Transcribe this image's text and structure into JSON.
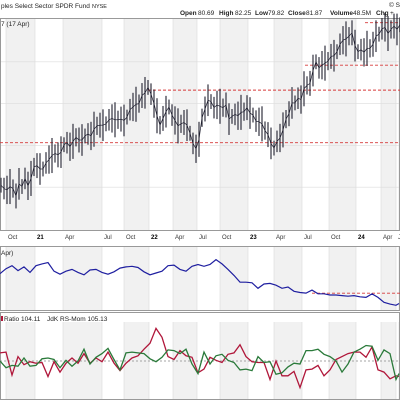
{
  "header": {
    "title": "ples Select Sector SPDR Fund",
    "exchange": "NYSE",
    "open_label": "Open",
    "open_value": "80.69",
    "high_label": "High",
    "high_value": "82.25",
    "low_label": "Low",
    "low_value": "79.82",
    "close_label": "Close",
    "close_value": "81.87",
    "volume_label": "Volume",
    "volume_value": "48.5M",
    "chg_label": "Chg",
    "chg_value": "+",
    "date_label": "7 (17 Apr)",
    "corner_symbol": "© S"
  },
  "indicator": {
    "rs_ratio_label": "Ratio 104.11",
    "rs_mom_label": "JdK RS-Mom 105.13",
    "rs_ratio_color": "#b0173a",
    "rs_mom_color": "#2a7a3a"
  },
  "relative_panel": {
    "label": "Apr)"
  },
  "colors": {
    "price": "#1f1f2f",
    "relative": "#1f1fa0",
    "support": "#d63a3a",
    "grid": "#dcdcdc",
    "band": "#f1f1f1"
  },
  "chart_data": [
    {
      "type": "line",
      "name": "price",
      "x_ticks": [
        "Oct",
        "21",
        "Apr",
        "Jul",
        "Oct",
        "22",
        "Apr",
        "Jul",
        "Oct",
        "23",
        "Apr",
        "Jul",
        "Oct",
        "24",
        "Apr",
        "Jul",
        "Oct"
      ],
      "bold_ticks": [
        "21",
        "22",
        "23",
        "24"
      ],
      "ylim": [
        55,
        86
      ],
      "x": [
        0,
        3,
        6,
        9,
        12,
        15,
        18,
        21,
        24,
        27,
        30,
        33,
        36,
        39,
        42,
        45,
        48,
        51,
        54,
        57,
        60,
        63,
        66,
        69,
        72,
        75,
        78,
        81,
        84,
        87,
        90,
        93,
        96,
        99,
        102,
        105,
        108,
        111,
        114,
        117,
        120,
        123,
        126,
        129,
        132,
        135,
        138,
        141,
        144,
        147,
        150,
        153,
        156,
        159,
        162,
        165,
        168,
        171,
        174,
        177,
        180,
        183,
        186,
        189,
        192,
        195,
        198,
        201,
        204,
        207,
        210,
        213,
        216,
        219,
        222,
        225,
        228,
        231,
        234,
        237,
        240,
        243,
        246,
        249,
        252,
        255,
        258,
        261,
        264,
        267,
        270,
        273,
        276,
        279,
        282,
        285,
        288,
        291,
        294,
        297,
        300,
        303,
        306,
        309,
        312,
        315,
        318,
        321,
        324,
        327,
        330,
        333,
        336,
        339,
        342,
        345,
        348,
        351,
        354,
        357,
        360,
        363,
        366,
        369,
        372,
        375,
        378,
        381,
        384,
        387,
        390,
        393,
        396,
        399
      ],
      "values": [
        61.5,
        61.0,
        60.8,
        61.3,
        61.0,
        59.9,
        61.7,
        61.3,
        62.5,
        61.4,
        62.5,
        64.2,
        64.4,
        63.9,
        63.9,
        64.8,
        65.3,
        65.9,
        66.2,
        66.0,
        66.4,
        67.5,
        67.8,
        67.2,
        68.0,
        68.6,
        68.2,
        68.2,
        68.8,
        69.1,
        68.8,
        69.8,
        70.3,
        70.4,
        70.4,
        70.6,
        71.2,
        71.4,
        71.2,
        71.2,
        71.3,
        71.1,
        71.6,
        72.7,
        73.1,
        73.5,
        73.6,
        74.8,
        75.2,
        76.0,
        75.0,
        73.6,
        71.8,
        70.4,
        71.4,
        72.4,
        73.1,
        71.9,
        71.1,
        70.3,
        70.6,
        70.8,
        70.4,
        69.2,
        67.7,
        66.9,
        68.3,
        71.5,
        72.8,
        74.1,
        73.9,
        73.0,
        73.4,
        73.2,
        73.0,
        73.4,
        71.3,
        71.7,
        72.0,
        71.8,
        72.3,
        72.4,
        73.0,
        72.2,
        71.9,
        71.0,
        70.9,
        70.6,
        69.6,
        69.0,
        67.7,
        67.0,
        68.0,
        68.5,
        69.7,
        71.3,
        72.1,
        73.7,
        73.7,
        74.4,
        74.2,
        75.8,
        76.3,
        76.6,
        78.5,
        79.8,
        78.9,
        79.3,
        79.6,
        79.9,
        80.6,
        80.7,
        81.3,
        82.4,
        83.0,
        83.2,
        83.6,
        84.1,
        82.2,
        81.3,
        81.6,
        81.2,
        81.8,
        81.8,
        82.4,
        83.6,
        83.9,
        84.7,
        84.9,
        84.0,
        84.6,
        85.1,
        84.6,
        85.3
      ],
      "support_levels": [
        75.6,
        67.8,
        79.3
      ],
      "resistance_levels": [
        85.6
      ]
    },
    {
      "type": "line",
      "name": "relative",
      "ylim": [
        0,
        1
      ],
      "x": [
        0,
        6,
        12,
        18,
        24,
        30,
        36,
        42,
        48,
        54,
        60,
        66,
        72,
        78,
        84,
        90,
        96,
        102,
        108,
        114,
        120,
        126,
        132,
        138,
        144,
        150,
        156,
        162,
        168,
        174,
        180,
        186,
        192,
        198,
        204,
        210,
        216,
        222,
        228,
        234,
        240,
        246,
        252,
        258,
        264,
        270,
        276,
        282,
        288,
        294,
        300,
        306,
        312,
        318,
        324,
        330,
        336,
        342,
        348,
        354,
        360,
        366,
        372,
        378,
        384,
        390,
        396,
        399
      ],
      "values": [
        0.58,
        0.66,
        0.71,
        0.63,
        0.69,
        0.6,
        0.71,
        0.74,
        0.76,
        0.62,
        0.57,
        0.62,
        0.65,
        0.6,
        0.56,
        0.64,
        0.65,
        0.6,
        0.57,
        0.61,
        0.67,
        0.69,
        0.7,
        0.68,
        0.61,
        0.56,
        0.59,
        0.62,
        0.71,
        0.72,
        0.65,
        0.62,
        0.7,
        0.73,
        0.7,
        0.73,
        0.81,
        0.74,
        0.65,
        0.55,
        0.44,
        0.44,
        0.43,
        0.34,
        0.41,
        0.42,
        0.39,
        0.34,
        0.36,
        0.29,
        0.27,
        0.26,
        0.31,
        0.25,
        0.25,
        0.23,
        0.23,
        0.22,
        0.21,
        0.22,
        0.2,
        0.19,
        0.25,
        0.19,
        0.11,
        0.08,
        0.06,
        0.09
      ],
      "reference_level": 0.26
    },
    {
      "type": "line",
      "title": "JdK RS",
      "ylim": [
        0,
        1
      ],
      "series": [
        {
          "name": "Ratio",
          "x": [
            0,
            6,
            12,
            18,
            24,
            30,
            36,
            42,
            48,
            54,
            60,
            66,
            72,
            78,
            84,
            90,
            96,
            102,
            108,
            114,
            120,
            126,
            132,
            138,
            144,
            150,
            156,
            162,
            168,
            174,
            180,
            186,
            192,
            198,
            204,
            210,
            216,
            222,
            228,
            234,
            240,
            246,
            252,
            258,
            264,
            270,
            276,
            282,
            288,
            294,
            300,
            306,
            312,
            318,
            324,
            330,
            336,
            342,
            348,
            354,
            360,
            366,
            372,
            378,
            384,
            390,
            396,
            399
          ],
          "values": [
            0.61,
            0.62,
            0.31,
            0.56,
            0.45,
            0.49,
            0.47,
            0.48,
            0.29,
            0.49,
            0.35,
            0.47,
            0.54,
            0.47,
            0.6,
            0.47,
            0.54,
            0.49,
            0.62,
            0.47,
            0.37,
            0.47,
            0.54,
            0.57,
            0.66,
            0.74,
            0.94,
            0.82,
            0.56,
            0.52,
            0.64,
            0.57,
            0.55,
            0.34,
            0.39,
            0.55,
            0.51,
            0.48,
            0.59,
            0.61,
            0.72,
            0.56,
            0.49,
            0.48,
            0.48,
            0.25,
            0.5,
            0.3,
            0.3,
            0.36,
            0.14,
            0.38,
            0.39,
            0.44,
            0.3,
            0.38,
            0.52,
            0.56,
            0.6,
            0.62,
            0.62,
            0.55,
            0.69,
            0.38,
            0.35,
            0.26,
            0.3,
            0.29
          ]
        },
        {
          "name": "RS-Mom",
          "x": [
            0,
            6,
            12,
            18,
            24,
            30,
            36,
            42,
            48,
            54,
            60,
            66,
            72,
            78,
            84,
            90,
            96,
            102,
            108,
            114,
            120,
            126,
            132,
            138,
            144,
            150,
            156,
            162,
            168,
            174,
            180,
            186,
            192,
            198,
            204,
            210,
            216,
            222,
            228,
            234,
            240,
            246,
            252,
            258,
            264,
            270,
            276,
            282,
            288,
            294,
            300,
            306,
            312,
            318,
            324,
            330,
            336,
            342,
            348,
            354,
            360,
            366,
            372,
            378,
            384,
            390,
            396,
            399
          ],
          "values": [
            0.5,
            0.41,
            0.44,
            0.43,
            0.54,
            0.43,
            0.44,
            0.53,
            0.54,
            0.52,
            0.41,
            0.51,
            0.43,
            0.5,
            0.66,
            0.46,
            0.55,
            0.6,
            0.67,
            0.52,
            0.38,
            0.61,
            0.62,
            0.61,
            0.6,
            0.53,
            0.49,
            0.55,
            0.65,
            0.64,
            0.6,
            0.66,
            0.46,
            0.33,
            0.62,
            0.46,
            0.57,
            0.59,
            0.51,
            0.48,
            0.38,
            0.39,
            0.37,
            0.56,
            0.48,
            0.49,
            0.32,
            0.34,
            0.42,
            0.47,
            0.46,
            0.64,
            0.64,
            0.66,
            0.59,
            0.56,
            0.5,
            0.35,
            0.46,
            0.62,
            0.66,
            0.71,
            0.7,
            0.51,
            0.65,
            0.6,
            0.25,
            0.33
          ]
        }
      ],
      "reference_level": 0.5
    }
  ]
}
